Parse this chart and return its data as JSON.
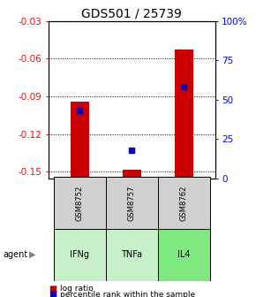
{
  "title": "GDS501 / 25739",
  "samples": [
    "GSM8752",
    "GSM8757",
    "GSM8762"
  ],
  "agents": [
    "IFNg",
    "TNFa",
    "IL4"
  ],
  "log_ratios": [
    -0.094,
    -0.148,
    -0.053
  ],
  "percentiles": [
    43,
    18,
    58
  ],
  "ylim_left": [
    -0.155,
    -0.03
  ],
  "ylim_right": [
    0,
    100
  ],
  "yticks_left": [
    -0.15,
    -0.12,
    -0.09,
    -0.06,
    -0.03
  ],
  "yticks_right": [
    0,
    25,
    50,
    75,
    100
  ],
  "ytick_labels_left": [
    "-0.15",
    "-0.12",
    "-0.09",
    "-0.06",
    "-0.03"
  ],
  "ytick_labels_right": [
    "0",
    "25",
    "50",
    "75",
    "100%"
  ],
  "bar_color": "#cc0000",
  "dot_color": "#0000cc",
  "title_fontsize": 10,
  "axis_fontsize": 7.5,
  "legend_fontsize": 6.5,
  "agent_colors": [
    "#c8f0c8",
    "#c8f0c8",
    "#7fe87f"
  ],
  "sample_box_color": "#d0d0d0",
  "bar_width": 0.35
}
